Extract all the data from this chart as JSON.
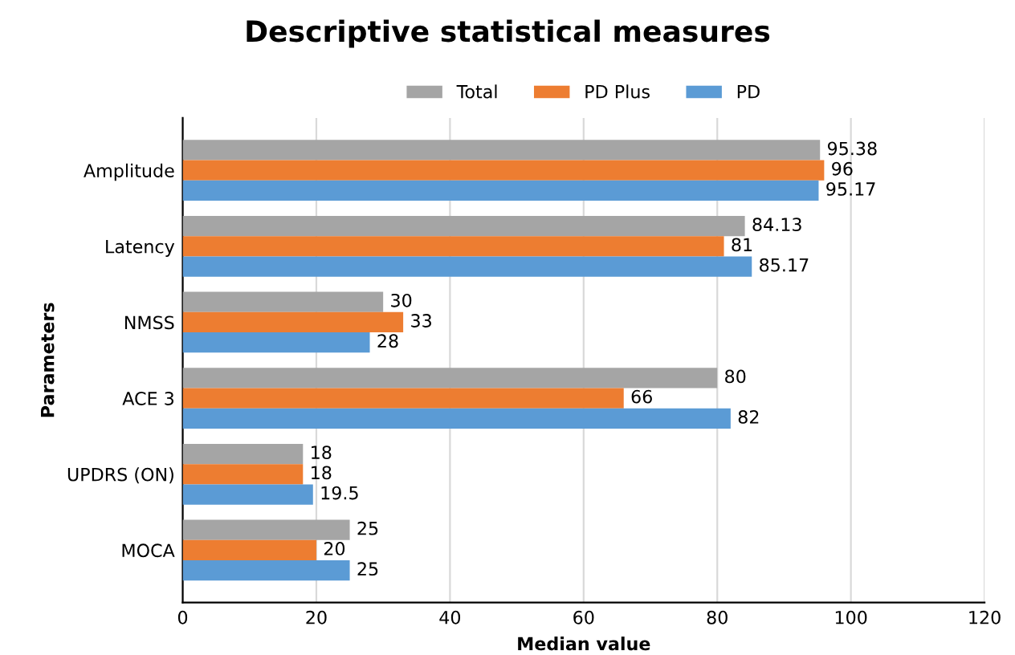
{
  "chart_data": {
    "type": "bar",
    "orientation": "horizontal",
    "title": "Descriptive statistical measures",
    "xlabel": "Median value",
    "ylabel": "Parameters",
    "categories": [
      "Amplitude",
      "Latency",
      "NMSS",
      "ACE 3",
      "UPDRS (ON)",
      "MOCA"
    ],
    "series": [
      {
        "name": "Total",
        "color": "#a5a5a5",
        "values": [
          95.38,
          84.13,
          30,
          80,
          18,
          25
        ]
      },
      {
        "name": "PD Plus",
        "color": "#ed7d31",
        "values": [
          96,
          81,
          33,
          66,
          18,
          20
        ]
      },
      {
        "name": "PD",
        "color": "#5b9bd5",
        "values": [
          95.17,
          85.17,
          28,
          82,
          19.5,
          25
        ]
      }
    ],
    "xlim": [
      0,
      120
    ],
    "xticks": [
      0,
      20,
      40,
      60,
      80,
      100,
      120
    ],
    "grid": "x",
    "legend": "top",
    "data_labels": true
  }
}
